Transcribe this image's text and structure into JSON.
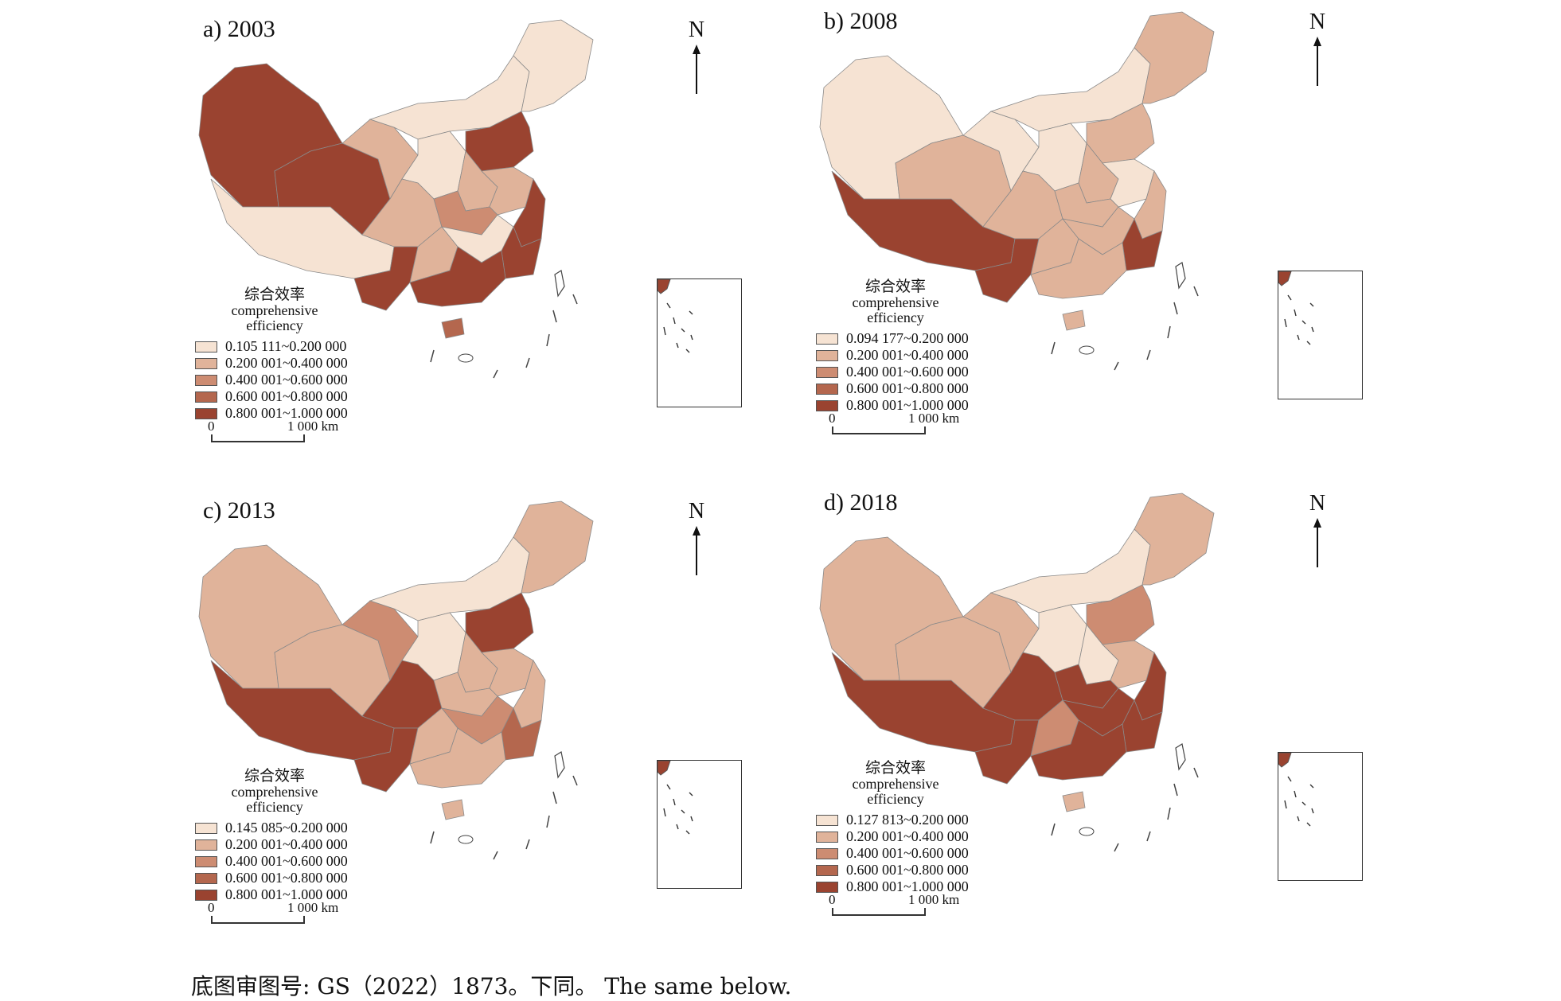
{
  "panels": [
    {
      "id": "a",
      "title": "a) 2003",
      "legend_items": [
        "0.105 111~0.200 000",
        "0.200 001~0.400 000",
        "0.400 001~0.600 000",
        "0.600 001~0.800 000",
        "0.800 001~1.000 000"
      ],
      "region_levels": [
        4,
        0,
        4,
        1,
        0,
        0,
        0,
        4,
        1,
        1,
        4,
        4,
        1,
        4,
        1,
        2,
        0,
        4,
        3
      ]
    },
    {
      "id": "b",
      "title": "b) 2008",
      "legend_items": [
        "0.094 177~0.200 000",
        "0.200 001~0.400 000",
        "0.400 001~0.600 000",
        "0.600 001~0.800 000",
        "0.800 001~1.000 000"
      ],
      "region_levels": [
        0,
        4,
        1,
        0,
        0,
        1,
        0,
        1,
        1,
        0,
        1,
        4,
        1,
        4,
        1,
        1,
        1,
        1,
        1
      ]
    },
    {
      "id": "c",
      "title": "c) 2013",
      "legend_items": [
        "0.145 085~0.200 000",
        "0.200 001~0.400 000",
        "0.400 001~0.600 000",
        "0.600 001~0.800 000",
        "0.800 001~1.000 000"
      ],
      "region_levels": [
        1,
        4,
        1,
        2,
        0,
        1,
        0,
        4,
        1,
        1,
        1,
        3,
        4,
        4,
        1,
        1,
        2,
        1,
        1
      ]
    },
    {
      "id": "d",
      "title": "d) 2018",
      "legend_items": [
        "0.127 813~0.200 000",
        "0.200 001~0.400 000",
        "0.400 001~0.600 000",
        "0.600 001~0.800 000",
        "0.800 001~1.000 000"
      ],
      "region_levels": [
        1,
        4,
        1,
        1,
        0,
        1,
        0,
        2,
        0,
        1,
        4,
        4,
        4,
        4,
        2,
        4,
        4,
        4,
        1
      ]
    }
  ],
  "legend_title_zh": "综合效率",
  "legend_title_en_1": "comprehensive",
  "legend_title_en_2": "efficiency",
  "north_label": "N",
  "scale_zero": "0",
  "scale_distance": "1 000 km",
  "colors": {
    "level_0": "#f6e3d3",
    "level_1": "#e0b39a",
    "level_2": "#cd8c72",
    "level_3": "#b4674e",
    "level_4": "#9a4330",
    "border": "#8a8a8a"
  },
  "footer": "底图审图号: GS（2022）1873。下同。 The same below."
}
